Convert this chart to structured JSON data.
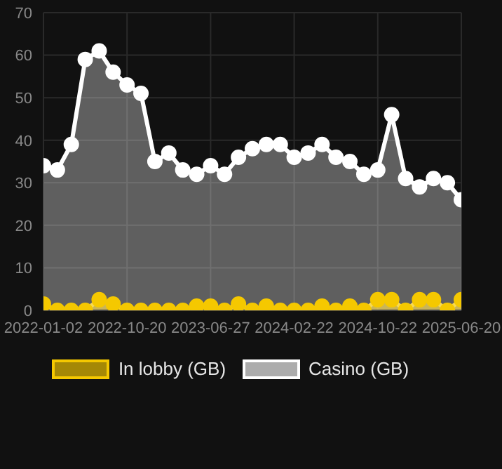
{
  "chart_data": {
    "type": "area",
    "categories": [
      "2022-01-02",
      null,
      null,
      null,
      null,
      null,
      "2022-10-20",
      null,
      null,
      null,
      null,
      null,
      "2023-06-27",
      null,
      null,
      null,
      null,
      null,
      "2024-02-22",
      null,
      null,
      null,
      null,
      null,
      "2024-10-22",
      null,
      null,
      null,
      null,
      null,
      "2025-06-20"
    ],
    "series": [
      {
        "name": "In lobby (GB)",
        "color": "#f5c800",
        "values": [
          1.5,
          0,
          0,
          0,
          2.5,
          1.5,
          0,
          0,
          0,
          0,
          0,
          1,
          1,
          0,
          1.5,
          0,
          1,
          0,
          0,
          0,
          1,
          0,
          1,
          0,
          2.5,
          2.5,
          0,
          2.5,
          2.5,
          0,
          2.5
        ]
      },
      {
        "name": "Casino (GB)",
        "color": "#ffffff",
        "values": [
          34,
          33,
          39,
          59,
          61,
          56,
          53,
          51,
          35,
          37,
          33,
          32,
          34,
          32,
          36,
          38,
          39,
          39,
          36,
          37,
          39,
          36,
          35,
          32,
          33,
          46,
          31,
          29,
          31,
          30,
          26
        ]
      }
    ],
    "ylim": [
      0,
      70
    ],
    "yticks": [
      0,
      10,
      20,
      30,
      40,
      50,
      60,
      70
    ],
    "grid": true,
    "legend": "bottom",
    "marker": "circle"
  }
}
